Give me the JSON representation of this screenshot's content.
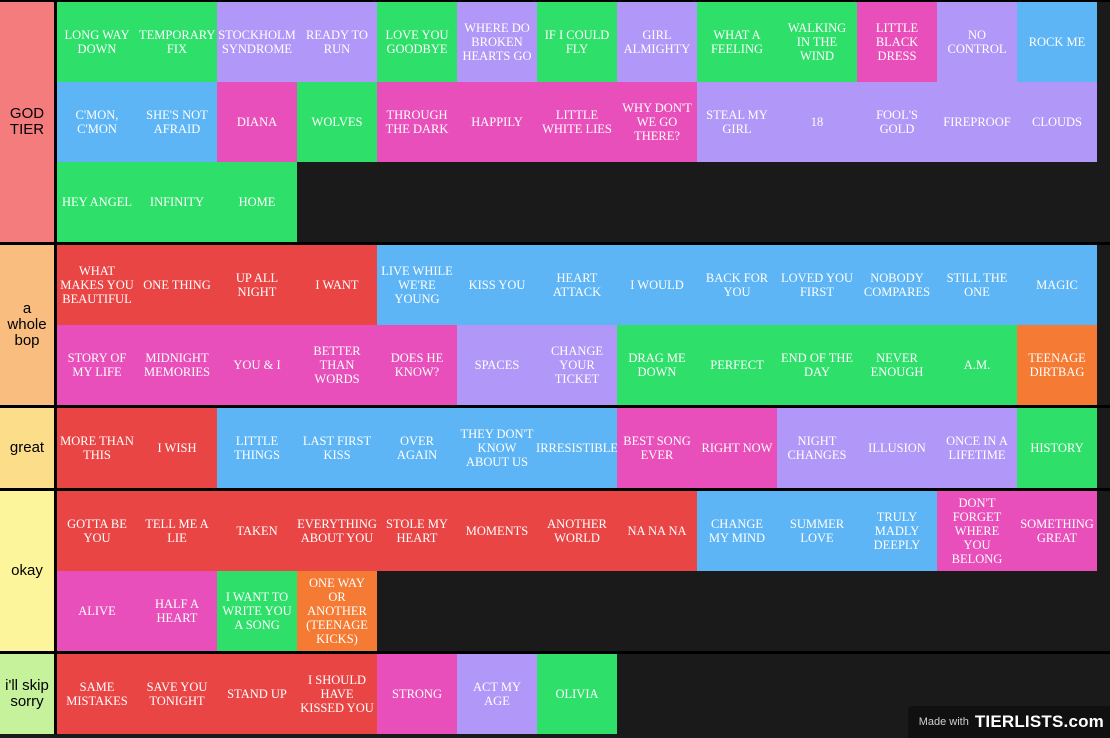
{
  "colors": {
    "green": "#2ee06a",
    "purple": "#b197f7",
    "blue": "#5db5f5",
    "pink": "#e84fbb",
    "red": "#ea4545",
    "orange": "#f57a33"
  },
  "tiers": [
    {
      "label": "GOD TIER",
      "color": "#f47c7c",
      "items": [
        {
          "text": "LONG WAY DOWN",
          "color": "green"
        },
        {
          "text": "TEMPORARY FIX",
          "color": "green"
        },
        {
          "text": "STOCKHOLM SYNDROME",
          "color": "purple"
        },
        {
          "text": "READY TO RUN",
          "color": "purple"
        },
        {
          "text": "LOVE YOU GOODBYE",
          "color": "green"
        },
        {
          "text": "WHERE DO BROKEN HEARTS GO",
          "color": "purple"
        },
        {
          "text": "IF I COULD FLY",
          "color": "green"
        },
        {
          "text": "GIRL ALMIGHTY",
          "color": "purple"
        },
        {
          "text": "WHAT A FEELING",
          "color": "green"
        },
        {
          "text": "WALKING IN THE WIND",
          "color": "green"
        },
        {
          "text": "LITTLE BLACK DRESS",
          "color": "pink"
        },
        {
          "text": "NO CONTROL",
          "color": "purple"
        },
        {
          "text": "ROCK ME",
          "color": "blue"
        },
        {
          "text": "C'MON, C'MON",
          "color": "blue"
        },
        {
          "text": "SHE'S NOT AFRAID",
          "color": "blue"
        },
        {
          "text": "DIANA",
          "color": "pink"
        },
        {
          "text": "WOLVES",
          "color": "green"
        },
        {
          "text": "THROUGH THE DARK",
          "color": "pink"
        },
        {
          "text": "HAPPILY",
          "color": "pink"
        },
        {
          "text": "LITTLE WHITE LIES",
          "color": "pink"
        },
        {
          "text": "WHY DON'T WE GO THERE?",
          "color": "pink"
        },
        {
          "text": "STEAL MY GIRL",
          "color": "purple"
        },
        {
          "text": "18",
          "color": "purple"
        },
        {
          "text": "FOOL'S GOLD",
          "color": "purple"
        },
        {
          "text": "FIREPROOF",
          "color": "purple"
        },
        {
          "text": "CLOUDS",
          "color": "purple"
        },
        {
          "text": "HEY ANGEL",
          "color": "green"
        },
        {
          "text": "INFINITY",
          "color": "green"
        },
        {
          "text": "HOME",
          "color": "green"
        }
      ]
    },
    {
      "label": "a whole bop",
      "color": "#f9bd7f",
      "items": [
        {
          "text": "WHAT MAKES YOU BEAUTIFUL",
          "color": "red"
        },
        {
          "text": "ONE THING",
          "color": "red"
        },
        {
          "text": "UP ALL NIGHT",
          "color": "red"
        },
        {
          "text": "I WANT",
          "color": "red"
        },
        {
          "text": "LIVE WHILE WE'RE YOUNG",
          "color": "blue"
        },
        {
          "text": "KISS YOU",
          "color": "blue"
        },
        {
          "text": "HEART ATTACK",
          "color": "blue"
        },
        {
          "text": "I WOULD",
          "color": "blue"
        },
        {
          "text": "BACK FOR YOU",
          "color": "blue"
        },
        {
          "text": "LOVED YOU FIRST",
          "color": "blue"
        },
        {
          "text": "NOBODY COMPARES",
          "color": "blue"
        },
        {
          "text": "STILL THE ONE",
          "color": "blue"
        },
        {
          "text": "MAGIC",
          "color": "blue"
        },
        {
          "text": "STORY OF MY LIFE",
          "color": "pink"
        },
        {
          "text": "MIDNIGHT MEMORIES",
          "color": "pink"
        },
        {
          "text": "YOU & I",
          "color": "pink"
        },
        {
          "text": "BETTER THAN WORDS",
          "color": "pink"
        },
        {
          "text": "DOES HE KNOW?",
          "color": "pink"
        },
        {
          "text": "SPACES",
          "color": "purple"
        },
        {
          "text": "CHANGE YOUR TICKET",
          "color": "purple"
        },
        {
          "text": "DRAG ME DOWN",
          "color": "green"
        },
        {
          "text": "PERFECT",
          "color": "green"
        },
        {
          "text": "END OF THE DAY",
          "color": "green"
        },
        {
          "text": "NEVER ENOUGH",
          "color": "green"
        },
        {
          "text": "A.M.",
          "color": "green"
        },
        {
          "text": "TEENAGE DIRTBAG",
          "color": "orange"
        }
      ]
    },
    {
      "label": "great",
      "color": "#fbdd8a",
      "items": [
        {
          "text": "MORE THAN THIS",
          "color": "red"
        },
        {
          "text": "I WISH",
          "color": "red"
        },
        {
          "text": "LITTLE THINGS",
          "color": "blue"
        },
        {
          "text": "LAST FIRST KISS",
          "color": "blue"
        },
        {
          "text": "OVER AGAIN",
          "color": "blue"
        },
        {
          "text": "THEY DON'T KNOW ABOUT US",
          "color": "blue"
        },
        {
          "text": "IRRESISTIBLE",
          "color": "blue"
        },
        {
          "text": "BEST SONG EVER",
          "color": "pink"
        },
        {
          "text": "RIGHT NOW",
          "color": "pink"
        },
        {
          "text": "NIGHT CHANGES",
          "color": "purple"
        },
        {
          "text": "ILLUSION",
          "color": "purple"
        },
        {
          "text": "ONCE IN A LIFETIME",
          "color": "purple"
        },
        {
          "text": "HISTORY",
          "color": "green"
        }
      ]
    },
    {
      "label": "okay",
      "color": "#fcf59c",
      "items": [
        {
          "text": "GOTTA BE YOU",
          "color": "red"
        },
        {
          "text": "TELL ME A LIE",
          "color": "red"
        },
        {
          "text": "TAKEN",
          "color": "red"
        },
        {
          "text": "EVERYTHING ABOUT YOU",
          "color": "red"
        },
        {
          "text": "STOLE MY HEART",
          "color": "red"
        },
        {
          "text": "MOMENTS",
          "color": "red"
        },
        {
          "text": "ANOTHER WORLD",
          "color": "red"
        },
        {
          "text": "NA NA NA",
          "color": "red"
        },
        {
          "text": "CHANGE MY MIND",
          "color": "blue"
        },
        {
          "text": "SUMMER LOVE",
          "color": "blue"
        },
        {
          "text": "TRULY MADLY DEEPLY",
          "color": "blue"
        },
        {
          "text": "DON'T FORGET WHERE YOU BELONG",
          "color": "pink"
        },
        {
          "text": "SOMETHING GREAT",
          "color": "pink"
        },
        {
          "text": "ALIVE",
          "color": "pink"
        },
        {
          "text": "HALF A HEART",
          "color": "pink"
        },
        {
          "text": "I WANT TO WRITE YOU A SONG",
          "color": "green"
        },
        {
          "text": "ONE WAY OR ANOTHER (TEENAGE KICKS)",
          "color": "orange"
        }
      ]
    },
    {
      "label": "i'll skip sorry",
      "color": "#c5f29b",
      "items": [
        {
          "text": "SAME MISTAKES",
          "color": "red"
        },
        {
          "text": "SAVE YOU TONIGHT",
          "color": "red"
        },
        {
          "text": "STAND UP",
          "color": "red"
        },
        {
          "text": "I SHOULD HAVE KISSED YOU",
          "color": "red"
        },
        {
          "text": "STRONG",
          "color": "pink"
        },
        {
          "text": "ACT MY AGE",
          "color": "purple"
        },
        {
          "text": "OLIVIA",
          "color": "green"
        }
      ]
    }
  ],
  "watermark": {
    "made_with": "Made with",
    "logo": "TIERLISTS.com"
  }
}
